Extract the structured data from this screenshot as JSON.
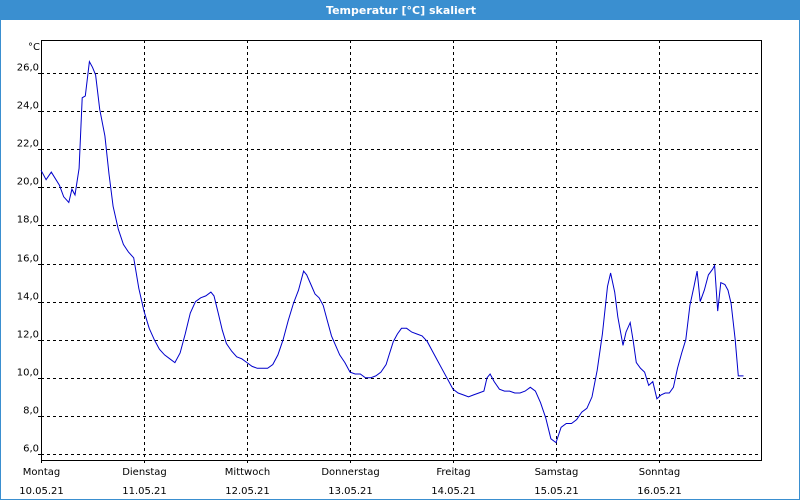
{
  "window": {
    "title": "Temperatur [°C] skaliert"
  },
  "chart_data": {
    "type": "line",
    "title": "Temperatur [°C] skaliert",
    "ylabel": "°C",
    "xlabel": "",
    "ylim": [
      5.5,
      27.5
    ],
    "yticks": [
      6.0,
      8.0,
      10.0,
      12.0,
      14.0,
      16.0,
      18.0,
      20.0,
      22.0,
      24.0,
      26.0
    ],
    "ytick_labels": [
      "6,0",
      "8,0",
      "10,0",
      "12,0",
      "14,0",
      "16,0",
      "18,0",
      "20,0",
      "22,0",
      "24,0",
      "26,0"
    ],
    "xlim": [
      0,
      7
    ],
    "x_unit": "days since 10.05.21",
    "day_labels": [
      {
        "x": 0,
        "weekday": "Montag",
        "date": "10.05.21"
      },
      {
        "x": 1,
        "weekday": "Dienstag",
        "date": "11.05.21"
      },
      {
        "x": 2,
        "weekday": "Mittwoch",
        "date": "12.05.21"
      },
      {
        "x": 3,
        "weekday": "Donnerstag",
        "date": "13.05.21"
      },
      {
        "x": 4,
        "weekday": "Freitag",
        "date": "14.05.21"
      },
      {
        "x": 5,
        "weekday": "Samstag",
        "date": "15.05.21"
      },
      {
        "x": 6,
        "weekday": "Sonntag",
        "date": "16.05.21"
      }
    ],
    "grid": true,
    "line_color": "#0000cc",
    "series": [
      {
        "name": "",
        "points": [
          [
            0.0,
            20.9
          ],
          [
            0.05,
            20.4
          ],
          [
            0.1,
            20.8
          ],
          [
            0.18,
            20.1
          ],
          [
            0.22,
            19.5
          ],
          [
            0.27,
            19.2
          ],
          [
            0.3,
            19.9
          ],
          [
            0.33,
            19.6
          ],
          [
            0.37,
            21.0
          ],
          [
            0.4,
            24.7
          ],
          [
            0.43,
            24.8
          ],
          [
            0.47,
            26.6
          ],
          [
            0.5,
            26.3
          ],
          [
            0.53,
            25.9
          ],
          [
            0.57,
            24.1
          ],
          [
            0.62,
            22.7
          ],
          [
            0.66,
            20.7
          ],
          [
            0.7,
            19.0
          ],
          [
            0.75,
            17.8
          ],
          [
            0.8,
            17.0
          ],
          [
            0.85,
            16.6
          ],
          [
            0.9,
            16.3
          ],
          [
            0.95,
            14.7
          ],
          [
            1.0,
            13.5
          ],
          [
            1.05,
            12.6
          ],
          [
            1.1,
            12.0
          ],
          [
            1.15,
            11.5
          ],
          [
            1.2,
            11.2
          ],
          [
            1.25,
            11.0
          ],
          [
            1.3,
            10.8
          ],
          [
            1.35,
            11.3
          ],
          [
            1.4,
            12.3
          ],
          [
            1.45,
            13.4
          ],
          [
            1.5,
            14.0
          ],
          [
            1.55,
            14.2
          ],
          [
            1.6,
            14.3
          ],
          [
            1.65,
            14.5
          ],
          [
            1.68,
            14.3
          ],
          [
            1.72,
            13.4
          ],
          [
            1.76,
            12.5
          ],
          [
            1.8,
            11.8
          ],
          [
            1.85,
            11.4
          ],
          [
            1.9,
            11.1
          ],
          [
            1.95,
            11.0
          ],
          [
            2.0,
            10.8
          ],
          [
            2.05,
            10.6
          ],
          [
            2.1,
            10.5
          ],
          [
            2.15,
            10.5
          ],
          [
            2.2,
            10.5
          ],
          [
            2.25,
            10.7
          ],
          [
            2.3,
            11.2
          ],
          [
            2.35,
            12.0
          ],
          [
            2.4,
            13.0
          ],
          [
            2.45,
            13.9
          ],
          [
            2.5,
            14.6
          ],
          [
            2.55,
            15.6
          ],
          [
            2.58,
            15.4
          ],
          [
            2.62,
            14.9
          ],
          [
            2.66,
            14.4
          ],
          [
            2.7,
            14.2
          ],
          [
            2.74,
            13.8
          ],
          [
            2.78,
            13.0
          ],
          [
            2.82,
            12.2
          ],
          [
            2.86,
            11.7
          ],
          [
            2.9,
            11.2
          ],
          [
            2.95,
            10.8
          ],
          [
            3.0,
            10.3
          ],
          [
            3.05,
            10.2
          ],
          [
            3.1,
            10.2
          ],
          [
            3.15,
            10.0
          ],
          [
            3.2,
            10.0
          ],
          [
            3.25,
            10.1
          ],
          [
            3.3,
            10.3
          ],
          [
            3.35,
            10.7
          ],
          [
            3.38,
            11.2
          ],
          [
            3.42,
            11.9
          ],
          [
            3.46,
            12.3
          ],
          [
            3.5,
            12.6
          ],
          [
            3.55,
            12.6
          ],
          [
            3.6,
            12.4
          ],
          [
            3.65,
            12.3
          ],
          [
            3.7,
            12.2
          ],
          [
            3.75,
            11.9
          ],
          [
            3.8,
            11.4
          ],
          [
            3.85,
            10.9
          ],
          [
            3.9,
            10.4
          ],
          [
            3.95,
            9.9
          ],
          [
            4.0,
            9.4
          ],
          [
            4.05,
            9.2
          ],
          [
            4.1,
            9.1
          ],
          [
            4.15,
            9.0
          ],
          [
            4.2,
            9.1
          ],
          [
            4.25,
            9.2
          ],
          [
            4.3,
            9.3
          ],
          [
            4.33,
            10.0
          ],
          [
            4.36,
            10.2
          ],
          [
            4.4,
            9.8
          ],
          [
            4.45,
            9.4
          ],
          [
            4.5,
            9.3
          ],
          [
            4.55,
            9.3
          ],
          [
            4.6,
            9.2
          ],
          [
            4.65,
            9.2
          ],
          [
            4.7,
            9.3
          ],
          [
            4.75,
            9.5
          ],
          [
            4.8,
            9.3
          ],
          [
            4.85,
            8.7
          ],
          [
            4.9,
            7.9
          ],
          [
            4.95,
            6.8
          ],
          [
            5.0,
            6.6
          ],
          [
            5.05,
            7.4
          ],
          [
            5.1,
            7.6
          ],
          [
            5.15,
            7.6
          ],
          [
            5.2,
            7.8
          ],
          [
            5.25,
            8.2
          ],
          [
            5.3,
            8.4
          ],
          [
            5.35,
            9.0
          ],
          [
            5.4,
            10.4
          ],
          [
            5.45,
            12.3
          ],
          [
            5.5,
            14.8
          ],
          [
            5.53,
            15.5
          ],
          [
            5.57,
            14.5
          ],
          [
            5.6,
            13.2
          ],
          [
            5.65,
            11.7
          ],
          [
            5.68,
            12.4
          ],
          [
            5.72,
            12.9
          ],
          [
            5.75,
            11.9
          ],
          [
            5.78,
            10.8
          ],
          [
            5.82,
            10.5
          ],
          [
            5.86,
            10.3
          ],
          [
            5.9,
            9.6
          ],
          [
            5.94,
            9.8
          ],
          [
            5.98,
            8.9
          ],
          [
            6.02,
            9.1
          ],
          [
            6.06,
            9.2
          ],
          [
            6.1,
            9.2
          ],
          [
            6.14,
            9.5
          ],
          [
            6.18,
            10.5
          ],
          [
            6.22,
            11.3
          ],
          [
            6.26,
            12.0
          ],
          [
            6.3,
            13.8
          ],
          [
            6.34,
            14.8
          ],
          [
            6.37,
            15.6
          ],
          [
            6.4,
            14.0
          ],
          [
            6.44,
            14.6
          ],
          [
            6.48,
            15.4
          ],
          [
            6.52,
            15.7
          ],
          [
            6.54,
            15.9
          ],
          [
            6.57,
            13.5
          ],
          [
            6.6,
            15.0
          ],
          [
            6.64,
            14.9
          ],
          [
            6.67,
            14.6
          ],
          [
            6.7,
            13.9
          ],
          [
            6.74,
            12.0
          ],
          [
            6.77,
            10.1
          ],
          [
            6.82,
            10.1
          ]
        ]
      }
    ]
  }
}
